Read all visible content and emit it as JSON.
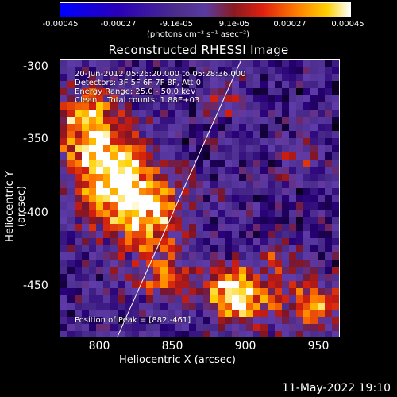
{
  "colorbar": {
    "ticks": [
      "-0.00045",
      "-0.00027",
      "-9.1e-05",
      "9.1e-05",
      "0.00027",
      "0.00045"
    ],
    "units": "(photons cm⁻² s⁻¹ asec⁻²)"
  },
  "title": "Reconstructed RHESSI Image",
  "annotations": {
    "line1": "20-Jun-2012 05:26:20.000 to 05:28:36.000",
    "line2": "Detectors: 3F 5F 6F 7F 8F, Att 0",
    "line3": "Energy Range: 25.0 - 50.0 keV",
    "line4": "Clean    Total counts: 1.88E+03",
    "peak": "Position of Peak = [882,-461]"
  },
  "axes": {
    "xlabel": "Heliocentric X (arcsec)",
    "ylabel": "Heliocentric Y (arcsec)",
    "xticks": [
      "800",
      "850",
      "900",
      "950"
    ],
    "yticks": [
      "-300",
      "-350",
      "-400",
      "-450"
    ]
  },
  "footer": "11-May-2022 19:10"
}
